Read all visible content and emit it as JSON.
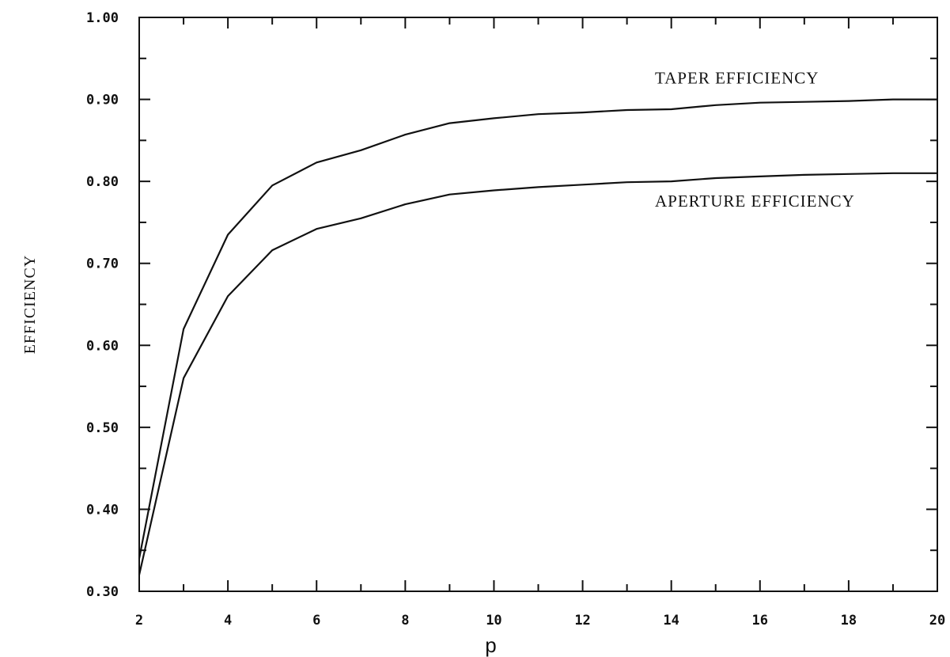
{
  "chart_data": {
    "type": "line",
    "title": "",
    "xlabel": "p",
    "ylabel": "EFFICIENCY",
    "xlim": [
      2,
      20
    ],
    "ylim": [
      0.3,
      1.0
    ],
    "x_ticks": [
      2,
      4,
      6,
      8,
      10,
      12,
      14,
      16,
      18,
      20
    ],
    "x_tick_labels": [
      "2",
      "4",
      "6",
      "8",
      "10",
      "12",
      "14",
      "16",
      "18",
      "20"
    ],
    "y_ticks": [
      0.3,
      0.4,
      0.5,
      0.6,
      0.7,
      0.8,
      0.9,
      1.0
    ],
    "y_tick_labels": [
      "0.30",
      "0.40",
      "0.50",
      "0.60",
      "0.70",
      "0.80",
      "0.90",
      "1.00"
    ],
    "grid": false,
    "legend": "none",
    "series": [
      {
        "name": "TAPER EFFICIENCY",
        "color": "#111111",
        "x": [
          2,
          3,
          4,
          5,
          6,
          7,
          8,
          9,
          10,
          11,
          12,
          13,
          14,
          15,
          16,
          17,
          18,
          19,
          20
        ],
        "y": [
          0.34,
          0.62,
          0.735,
          0.795,
          0.823,
          0.838,
          0.857,
          0.871,
          0.877,
          0.882,
          0.884,
          0.887,
          0.888,
          0.893,
          0.896,
          0.897,
          0.898,
          0.9,
          0.9
        ]
      },
      {
        "name": "APERTURE EFFICIENCY",
        "color": "#111111",
        "x": [
          2,
          3,
          4,
          5,
          6,
          7,
          8,
          9,
          10,
          11,
          12,
          13,
          14,
          15,
          16,
          17,
          18,
          19,
          20
        ],
        "y": [
          0.32,
          0.56,
          0.66,
          0.716,
          0.742,
          0.755,
          0.772,
          0.784,
          0.789,
          0.793,
          0.796,
          0.799,
          0.8,
          0.804,
          0.806,
          0.808,
          0.809,
          0.81,
          0.81
        ]
      }
    ]
  }
}
